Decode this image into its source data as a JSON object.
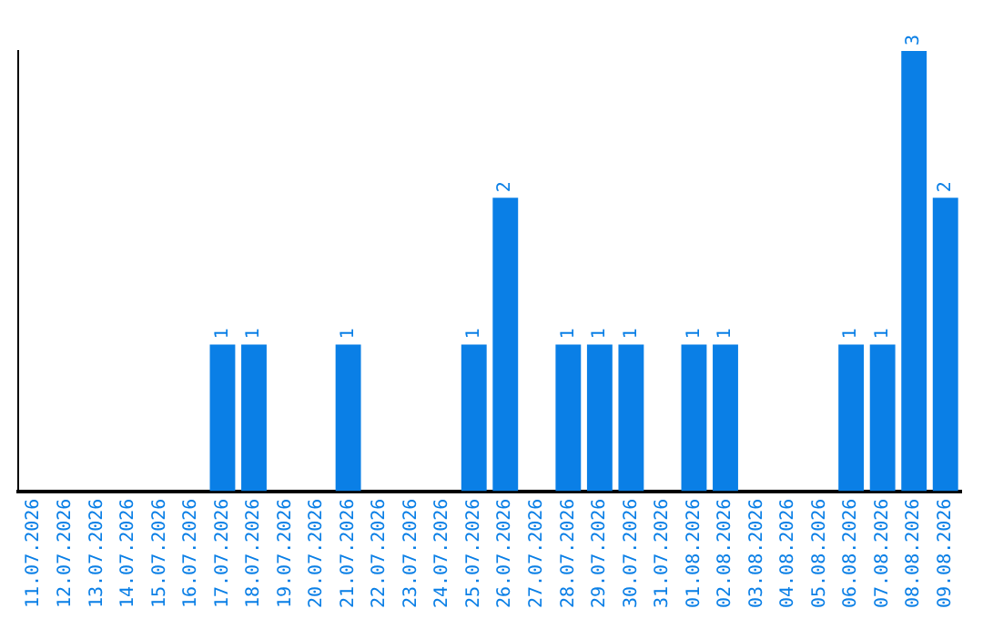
{
  "chart_data": {
    "type": "bar",
    "categories": [
      "11.07.2026",
      "12.07.2026",
      "13.07.2026",
      "14.07.2026",
      "15.07.2026",
      "16.07.2026",
      "17.07.2026",
      "18.07.2026",
      "19.07.2026",
      "20.07.2026",
      "21.07.2026",
      "22.07.2026",
      "23.07.2026",
      "24.07.2026",
      "25.07.2026",
      "26.07.2026",
      "27.07.2026",
      "28.07.2026",
      "29.07.2026",
      "30.07.2026",
      "31.07.2026",
      "01.08.2026",
      "02.08.2026",
      "03.08.2026",
      "04.08.2026",
      "05.08.2026",
      "06.08.2026",
      "07.08.2026",
      "08.08.2026",
      "09.08.2026"
    ],
    "values": [
      0,
      0,
      0,
      0,
      0,
      0,
      1,
      1,
      0,
      0,
      1,
      0,
      0,
      0,
      1,
      2,
      0,
      1,
      1,
      1,
      0,
      1,
      1,
      0,
      0,
      0,
      1,
      1,
      3,
      2
    ],
    "value_labels": [
      null,
      null,
      null,
      null,
      null,
      null,
      "1",
      "1",
      null,
      null,
      "1",
      null,
      null,
      null,
      "1",
      "2",
      null,
      "1",
      "1",
      "1",
      null,
      "1",
      "1",
      null,
      null,
      null,
      "1",
      "1",
      "3",
      "2"
    ],
    "color": "#0a7fe6",
    "grid": false,
    "legend": false
  }
}
